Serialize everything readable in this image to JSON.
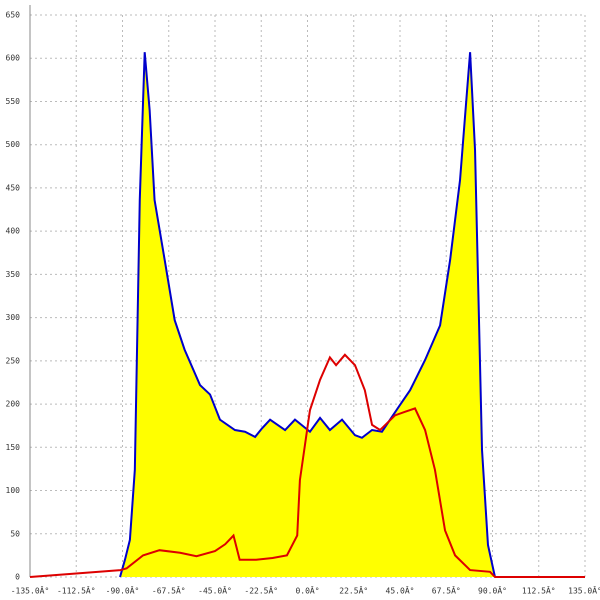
{
  "chart_data": {
    "type": "area",
    "xlim": [
      -135,
      135
    ],
    "xticks": [
      {
        "value": -135,
        "label": "-135.0Â°"
      },
      {
        "value": -112.5,
        "label": "-112.5Â°"
      },
      {
        "value": -90,
        "label": "-90.0Â°"
      },
      {
        "value": -67.5,
        "label": "-67.5Â°"
      },
      {
        "value": -45,
        "label": "-45.0Â°"
      },
      {
        "value": -22.5,
        "label": "-22.5Â°"
      },
      {
        "value": 0,
        "label": "0.0Â°"
      },
      {
        "value": 22.5,
        "label": "22.5Â°"
      },
      {
        "value": 45,
        "label": "45.0Â°"
      },
      {
        "value": 67.5,
        "label": "67.5Â°"
      },
      {
        "value": 90,
        "label": "90.0Â°"
      },
      {
        "value": 112.5,
        "label": "112.5Â°"
      },
      {
        "value": 135,
        "label": "135.0Â°"
      }
    ],
    "ylim": [
      0,
      650
    ],
    "yticks": [
      0,
      50,
      100,
      150,
      200,
      250,
      300,
      350,
      400,
      450,
      500,
      550,
      600,
      650
    ],
    "grid": true,
    "series": [
      {
        "color": "#0000cc",
        "fill": "#ffff00",
        "x": [
          -91.2,
          -88.8,
          -86.4,
          -84,
          -81.6,
          -79.2,
          -76.8,
          -74.4,
          -69.5,
          -64.6,
          -59.8,
          -52.3,
          -47.4,
          -42.6,
          -35.3,
          -30.4,
          -25.5,
          -22.1,
          -18.2,
          -10.9,
          -6.1,
          1.2,
          6.1,
          10.9,
          16.8,
          23.1,
          26.5,
          31.4,
          36.2,
          45,
          49.9,
          57.2,
          64.5,
          69.4,
          74.2,
          79.1,
          81.5,
          84.9,
          87.8,
          91.2
        ],
        "values": [
          0,
          20,
          43,
          124,
          436,
          607,
          540,
          436,
          367,
          297,
          263,
          222,
          211,
          182,
          170,
          168,
          162,
          172,
          182,
          170,
          182,
          168,
          184,
          170,
          182,
          164,
          161,
          170,
          168,
          199,
          216,
          251,
          291,
          367,
          459,
          607,
          494,
          147,
          37,
          0
        ]
      },
      {
        "color": "#dd0000",
        "x": [
          -135,
          -91,
          -88,
          -80,
          -72,
          -62,
          -54,
          -45,
          -40,
          -36,
          -33,
          -25,
          -17,
          -10,
          -5,
          -3.7,
          1.2,
          6.1,
          10.9,
          13.9,
          18.2,
          23.1,
          27.9,
          31.4,
          35.3,
          42.6,
          47.4,
          52.3,
          57.2,
          62,
          66.9,
          71.8,
          79.1,
          88.8,
          91.2,
          135
        ],
        "values": [
          0,
          8,
          10,
          25,
          31,
          28,
          24,
          30,
          38,
          48,
          20,
          20,
          22,
          25,
          48,
          112,
          193,
          228,
          254,
          245,
          257,
          245,
          216,
          176,
          170,
          187,
          191,
          195,
          170,
          124,
          54,
          25,
          8,
          6,
          0,
          0
        ]
      }
    ]
  }
}
